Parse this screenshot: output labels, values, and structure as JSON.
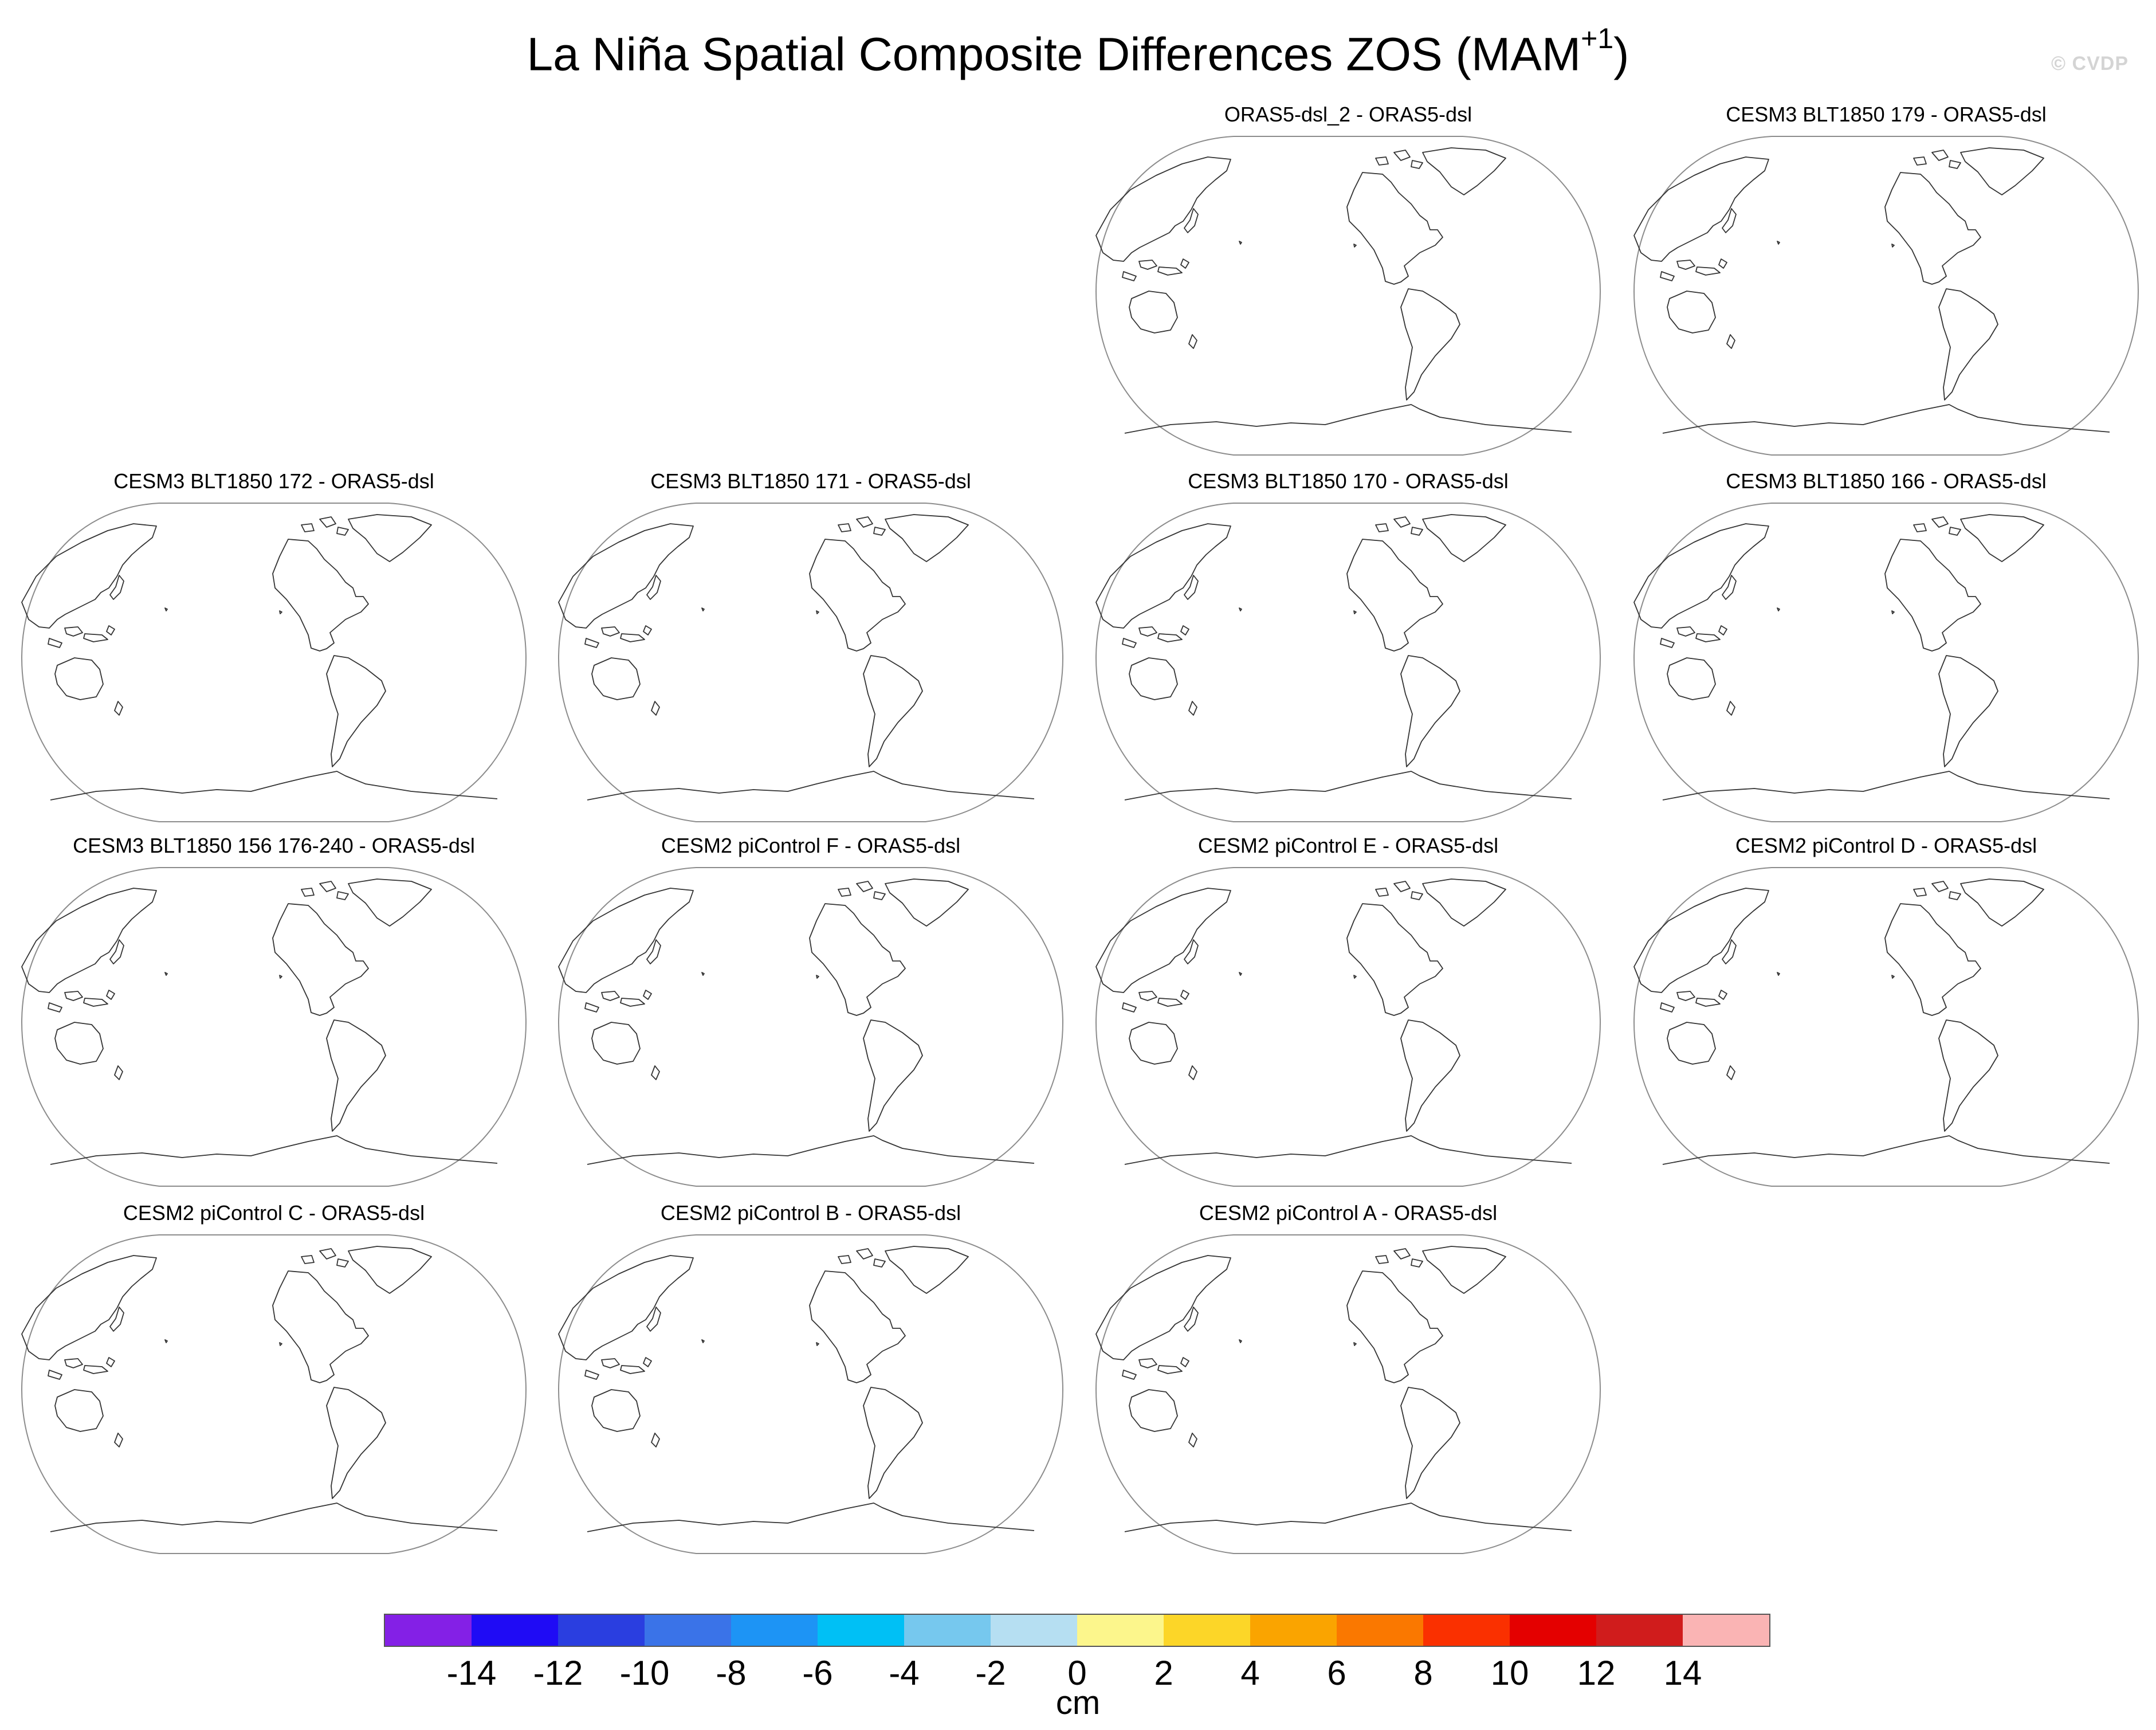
{
  "title": "La Niña Spatial Composite Differences ZOS (MAM",
  "title_superscript": "+1",
  "title_close": ")",
  "credit": "© CVDP",
  "panels": [
    {
      "title": "ORAS5-dsl_2 - ORAS5-dsl",
      "row": 0,
      "col": 2
    },
    {
      "title": "CESM3 BLT1850 179 - ORAS5-dsl",
      "row": 0,
      "col": 3
    },
    {
      "title": "CESM3 BLT1850 172 - ORAS5-dsl",
      "row": 1,
      "col": 0
    },
    {
      "title": "CESM3 BLT1850 171 - ORAS5-dsl",
      "row": 1,
      "col": 1
    },
    {
      "title": "CESM3 BLT1850 170 - ORAS5-dsl",
      "row": 1,
      "col": 2
    },
    {
      "title": "CESM3 BLT1850 166 - ORAS5-dsl",
      "row": 1,
      "col": 3
    },
    {
      "title": "CESM3 BLT1850 156 176-240 - ORAS5-dsl",
      "row": 2,
      "col": 0
    },
    {
      "title": "CESM2 piControl F - ORAS5-dsl",
      "row": 2,
      "col": 1
    },
    {
      "title": "CESM2 piControl E - ORAS5-dsl",
      "row": 2,
      "col": 2
    },
    {
      "title": "CESM2 piControl D - ORAS5-dsl",
      "row": 2,
      "col": 3
    },
    {
      "title": "CESM2 piControl C - ORAS5-dsl",
      "row": 3,
      "col": 0
    },
    {
      "title": "CESM2 piControl B - ORAS5-dsl",
      "row": 3,
      "col": 1
    },
    {
      "title": "CESM2 piControl A - ORAS5-dsl",
      "row": 3,
      "col": 2
    }
  ],
  "colorbar": {
    "colors": [
      "#8420e6",
      "#1f0bf5",
      "#2a3ee0",
      "#3a73e8",
      "#1d94f5",
      "#00c0f5",
      "#76c8ee",
      "#b6dff2",
      "#fcf68c",
      "#fcd628",
      "#faa400",
      "#fa7800",
      "#fa3000",
      "#e40000",
      "#d01c1c",
      "#fab4b4"
    ],
    "ticks": [
      "-14",
      "-12",
      "-10",
      "-8",
      "-6",
      "-4",
      "-2",
      "0",
      "2",
      "4",
      "6",
      "8",
      "10",
      "12",
      "14"
    ],
    "units": "cm"
  }
}
